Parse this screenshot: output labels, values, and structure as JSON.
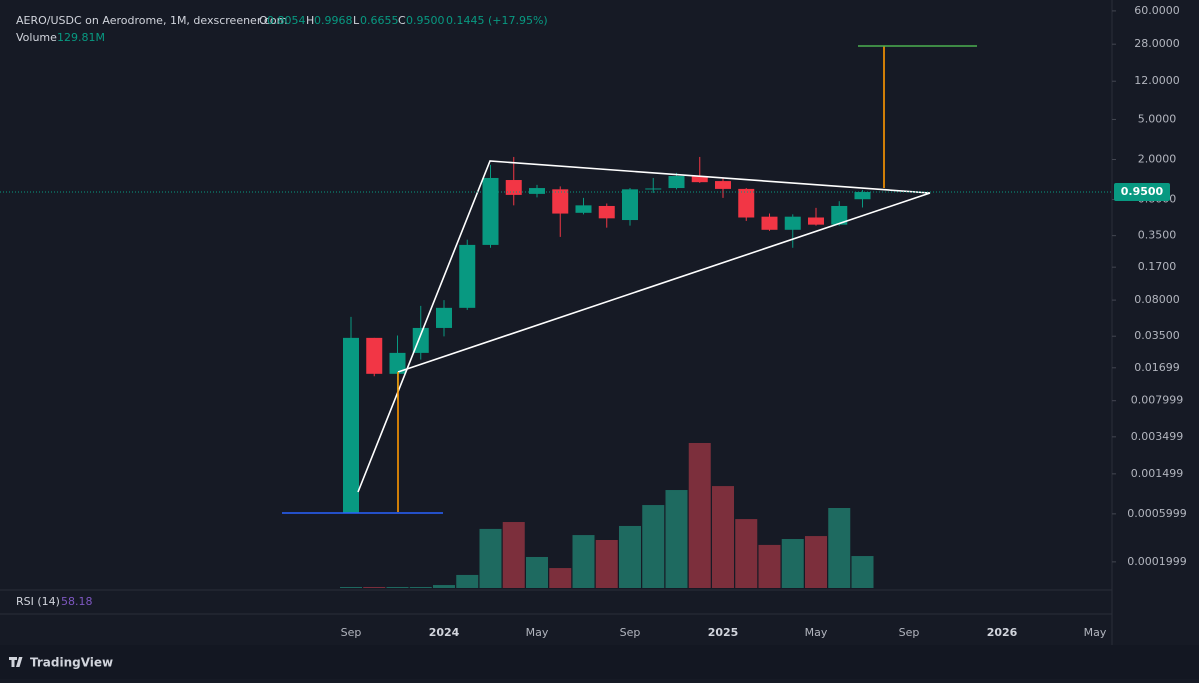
{
  "header": {
    "symbol": "AERO/USDC on Aerodrome, 1M, dexscreener.com",
    "o_key": "O",
    "o": "0.8054",
    "h_key": "H",
    "h": "0.9968",
    "l_key": "L",
    "l": "0.6655",
    "c_key": "C",
    "c": "0.9500",
    "change": "0.1445 (+17.95%)",
    "volume_key": "Volume",
    "volume": "129.81M"
  },
  "rsi": {
    "name": "RSI (14)",
    "value": "58.18"
  },
  "brand": "TradingView",
  "chart_data": {
    "type": "candlestick",
    "log_scale": true,
    "ylim": [
      0.000105,
      77
    ],
    "yticks": [
      {
        "value": 60,
        "label": "60.0000"
      },
      {
        "value": 28,
        "label": "28.0000"
      },
      {
        "value": 12,
        "label": "12.0000"
      },
      {
        "value": 5,
        "label": "5.0000"
      },
      {
        "value": 2,
        "label": "2.0000"
      },
      {
        "value": 0.8,
        "label": "0.8000"
      },
      {
        "value": 0.35,
        "label": "0.3500"
      },
      {
        "value": 0.17,
        "label": "0.1700"
      },
      {
        "value": 0.08,
        "label": "0.08000"
      },
      {
        "value": 0.035,
        "label": "0.03500"
      },
      0.01699,
      0.007999,
      0.003499,
      0.001499,
      0.0005999,
      0.0001999
    ],
    "x_labels": [
      "Sep",
      "2024",
      "May",
      "Sep",
      "2025",
      "May",
      "Sep",
      "2026",
      "May"
    ],
    "open": [
      0.000614,
      0.0337,
      0.0148,
      0.0239,
      0.0423,
      0.067,
      0.283,
      1.25,
      0.91,
      1.01,
      0.59,
      0.69,
      0.5,
      1.01,
      1.04,
      1.37,
      1.22,
      1.02,
      0.54,
      0.4,
      0.53,
      0.45,
      0.8054
    ],
    "high": [
      0.0545,
      0.0337,
      0.0356,
      0.0701,
      0.08,
      0.319,
      1.77,
      2.12,
      1.12,
      1.08,
      0.83,
      0.73,
      1.04,
      1.31,
      1.47,
      2.12,
      1.31,
      1.04,
      0.58,
      0.57,
      0.66,
      0.77,
      0.9968
    ],
    "low": [
      0.000614,
      0.014,
      0.0082,
      0.0205,
      0.0349,
      0.0639,
      0.265,
      0.7,
      0.84,
      0.34,
      0.57,
      0.42,
      0.44,
      0.93,
      1.01,
      1.17,
      0.83,
      0.49,
      0.39,
      0.265,
      0.44,
      0.44,
      0.6655
    ],
    "close": [
      0.0337,
      0.0148,
      0.0239,
      0.0423,
      0.067,
      0.283,
      1.31,
      0.889,
      1.04,
      0.58,
      0.7,
      0.52,
      1.01,
      1.03,
      1.37,
      1.19,
      1.02,
      0.53,
      0.4,
      0.54,
      0.45,
      0.69,
      0.95
    ],
    "up_color": "#089981",
    "down_color": "#f23645",
    "volume": {
      "values": [
        4,
        4,
        4,
        4,
        12,
        53,
        240,
        268,
        126,
        81,
        215,
        195,
        252,
        337,
        398,
        589,
        414,
        280,
        175,
        199,
        211,
        325,
        129.81
      ],
      "up_color": "#1e6a60",
      "down_color": "#7c2f3c"
    },
    "price_label": {
      "value": 0.95,
      "label": "0.9500"
    }
  }
}
